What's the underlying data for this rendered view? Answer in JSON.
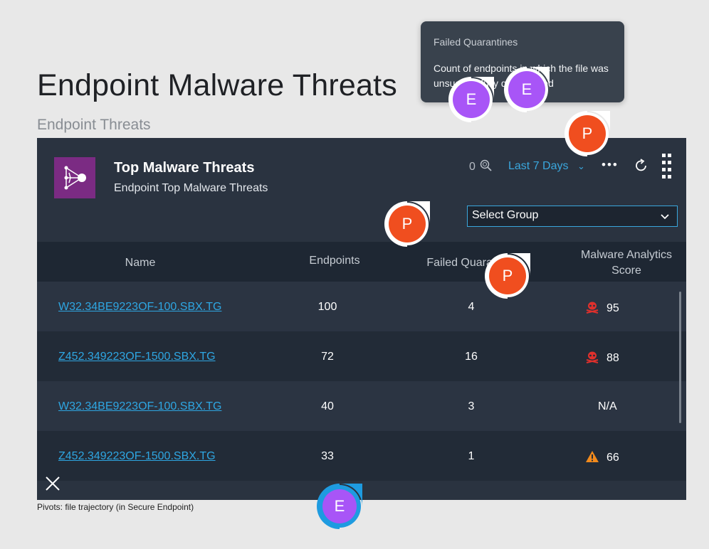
{
  "page": {
    "title": "Endpoint Malware Threats",
    "section": "Endpoint Threats",
    "caption": "Pivots: file trajectory (in Secure Endpoint)"
  },
  "tooltip": {
    "title": "Failed Quarantines",
    "body": "Count of endpoints in which the file was unsuccessfully quarantined"
  },
  "card": {
    "title": "Top Malware Threats",
    "subtitle": "Endpoint Top Malware Threats",
    "count": "0",
    "range": "Last 7 Days",
    "group_select": "Select Group",
    "columns": {
      "name": "Name",
      "endpoints": "Endpoints",
      "failed": "Failed Quarantines",
      "score_line1": "Malware Analytics",
      "score_line2": "Score"
    },
    "rows": [
      {
        "name": "W32.34BE9223OF-100.SBX.TG",
        "endpoints": "100",
        "failed": "4",
        "score": "95",
        "score_icon": "skull-icon"
      },
      {
        "name": "Z452.349223OF-1500.SBX.TG",
        "endpoints": "72",
        "failed": "16",
        "score": "88",
        "score_icon": "skull-icon"
      },
      {
        "name": "W32.34BE9223OF-100.SBX.TG",
        "endpoints": "40",
        "failed": "3",
        "score": "N/A",
        "score_icon": ""
      },
      {
        "name": "Z452.349223OF-1500.SBX.TG",
        "endpoints": "33",
        "failed": "1",
        "score": "66",
        "score_icon": "warning-icon"
      }
    ]
  },
  "markers": {
    "e": "E",
    "p": "P"
  },
  "colors": {
    "card_bg": "#2a3340",
    "accent": "#3aa7dd",
    "link": "#2ea6e2",
    "marker_e": "#a855f7",
    "marker_e_alt": "#1e9be0",
    "marker_p": "#f04e1f"
  }
}
